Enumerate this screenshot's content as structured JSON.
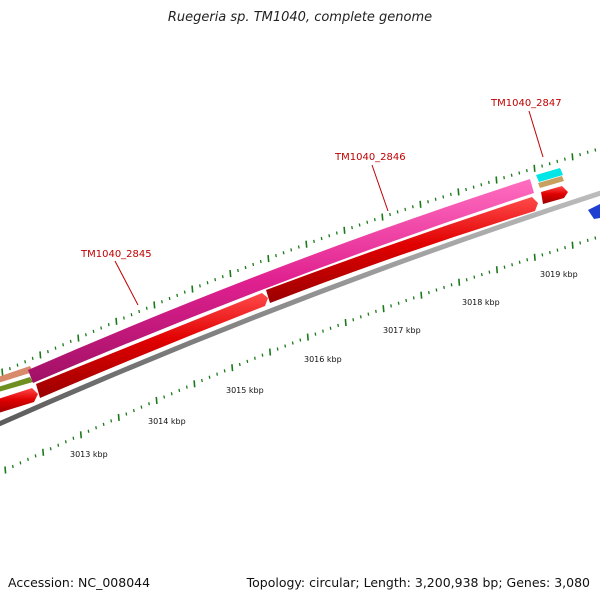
{
  "title": "Ruegeria sp. TM1040, complete genome",
  "footer": {
    "accession": "Accession: NC_008044",
    "summary": "Topology: circular; Length: 3,200,938 bp; Genes: 3,080"
  },
  "scale_labels": [
    "3013 kbp",
    "3014 kbp",
    "3015 kbp",
    "3016 kbp",
    "3017 kbp",
    "3018 kbp",
    "3019 kbp"
  ],
  "gene_labels": [
    "TM1040_2845",
    "TM1040_2846",
    "TM1040_2847"
  ],
  "colors": {
    "cds": "#e00000",
    "gene": "#e0208f",
    "backbone": "#8c8c8c",
    "ticks": "#1a7a1a",
    "label": "#c00000",
    "cyan": "#00e5e5",
    "tan": "#c8a060",
    "olive": "#6f8f20",
    "blue": "#1f3fd0"
  }
}
